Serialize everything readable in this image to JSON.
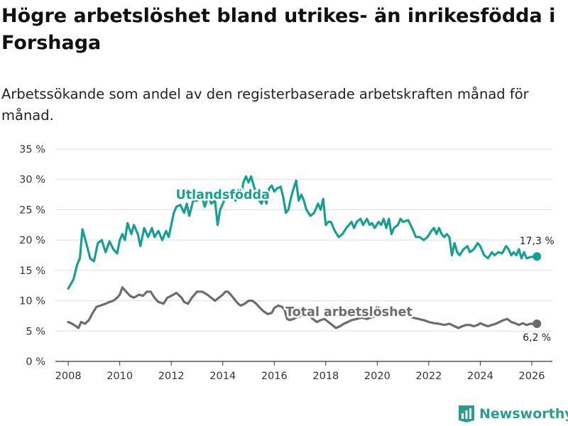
{
  "title": "Högre arbetslöshet bland utrikes- än inrikesfödda i Forshaga",
  "subtitle": "Arbetssökande som andel av den registerbaserade arbetskraften månad för månad.",
  "brand": {
    "name": "Newsworthy"
  },
  "colors": {
    "foreign": "#17a091",
    "total": "#6c6c70",
    "grid": "#dddddd",
    "axis": "#333333",
    "brand": "#2a9d8f"
  },
  "chart_data": {
    "type": "line",
    "title": "Högre arbetslöshet bland utrikes- än inrikesfödda i Forshaga",
    "xlabel": "",
    "ylabel": "",
    "xlim": [
      2007.5,
      2026.8
    ],
    "ylim": [
      0,
      35
    ],
    "y_ticks": [
      0,
      5,
      10,
      15,
      20,
      25,
      30,
      35
    ],
    "y_tick_labels": [
      "0 %",
      "5 %",
      "10 %",
      "15 %",
      "20 %",
      "25 %",
      "30 %",
      "35 %"
    ],
    "x_ticks": [
      2008,
      2010,
      2012,
      2014,
      2016,
      2018,
      2020,
      2022,
      2024,
      2026
    ],
    "x_tick_labels": [
      "2008",
      "2010",
      "2012",
      "2014",
      "2016",
      "2018",
      "2020",
      "2022",
      "2024",
      "2026"
    ],
    "grid": true,
    "series": [
      {
        "name": "Utlandsfödda",
        "key": "foreign",
        "end_label": "17,3 %",
        "points": [
          [
            2008.0,
            12.0
          ],
          [
            2008.2,
            13.5
          ],
          [
            2008.35,
            16.0
          ],
          [
            2008.45,
            17.0
          ],
          [
            2008.55,
            21.8
          ],
          [
            2008.7,
            19.5
          ],
          [
            2008.85,
            17.0
          ],
          [
            2009.0,
            16.5
          ],
          [
            2009.15,
            19.5
          ],
          [
            2009.3,
            20.0
          ],
          [
            2009.45,
            18.0
          ],
          [
            2009.6,
            19.8
          ],
          [
            2009.75,
            18.5
          ],
          [
            2009.9,
            17.8
          ],
          [
            2010.0,
            20.0
          ],
          [
            2010.1,
            21.0
          ],
          [
            2010.2,
            20.0
          ],
          [
            2010.3,
            22.8
          ],
          [
            2010.45,
            21.0
          ],
          [
            2010.55,
            22.5
          ],
          [
            2010.7,
            21.0
          ],
          [
            2010.8,
            19.0
          ],
          [
            2010.95,
            22.0
          ],
          [
            2011.1,
            20.5
          ],
          [
            2011.25,
            22.0
          ],
          [
            2011.35,
            20.5
          ],
          [
            2011.5,
            21.5
          ],
          [
            2011.65,
            20.0
          ],
          [
            2011.8,
            21.5
          ],
          [
            2011.9,
            20.5
          ],
          [
            2012.0,
            22.5
          ],
          [
            2012.1,
            24.5
          ],
          [
            2012.2,
            25.5
          ],
          [
            2012.35,
            25.8
          ],
          [
            2012.5,
            24.5
          ],
          [
            2012.6,
            26.0
          ],
          [
            2012.7,
            24.0
          ],
          [
            2012.85,
            26.5
          ],
          [
            2013.0,
            26.5
          ],
          [
            2013.2,
            27.0
          ],
          [
            2013.3,
            25.5
          ],
          [
            2013.45,
            27.5
          ],
          [
            2013.55,
            26.0
          ],
          [
            2013.7,
            26.5
          ],
          [
            2013.8,
            22.5
          ],
          [
            2013.9,
            25.0
          ],
          [
            2014.05,
            26.5
          ],
          [
            2014.2,
            27.0
          ],
          [
            2014.35,
            27.5
          ],
          [
            2014.5,
            26.5
          ],
          [
            2014.6,
            28.5
          ],
          [
            2014.7,
            27.0
          ],
          [
            2014.8,
            29.5
          ],
          [
            2014.9,
            30.5
          ],
          [
            2015.0,
            29.5
          ],
          [
            2015.1,
            30.5
          ],
          [
            2015.2,
            29.0
          ],
          [
            2015.35,
            27.0
          ],
          [
            2015.5,
            26.0
          ],
          [
            2015.6,
            27.0
          ],
          [
            2015.7,
            26.0
          ],
          [
            2015.8,
            28.5
          ],
          [
            2015.9,
            29.0
          ],
          [
            2016.0,
            28.0
          ],
          [
            2016.1,
            28.5
          ],
          [
            2016.25,
            28.8
          ],
          [
            2016.35,
            27.0
          ],
          [
            2016.45,
            24.5
          ],
          [
            2016.55,
            25.0
          ],
          [
            2016.65,
            27.0
          ],
          [
            2016.75,
            28.5
          ],
          [
            2016.85,
            29.8
          ],
          [
            2016.95,
            26.5
          ],
          [
            2017.05,
            27.5
          ],
          [
            2017.15,
            26.5
          ],
          [
            2017.25,
            25.0
          ],
          [
            2017.4,
            24.0
          ],
          [
            2017.55,
            24.5
          ],
          [
            2017.7,
            26.0
          ],
          [
            2017.8,
            25.0
          ],
          [
            2017.9,
            26.8
          ],
          [
            2018.0,
            22.5
          ],
          [
            2018.1,
            23.0
          ],
          [
            2018.2,
            23.0
          ],
          [
            2018.35,
            21.5
          ],
          [
            2018.5,
            20.5
          ],
          [
            2018.65,
            21.0
          ],
          [
            2018.8,
            22.0
          ],
          [
            2018.9,
            22.5
          ],
          [
            2019.0,
            23.0
          ],
          [
            2019.1,
            22.0
          ],
          [
            2019.2,
            23.0
          ],
          [
            2019.35,
            23.5
          ],
          [
            2019.45,
            22.5
          ],
          [
            2019.6,
            23.5
          ],
          [
            2019.7,
            22.5
          ],
          [
            2019.8,
            22.8
          ],
          [
            2019.9,
            22.0
          ],
          [
            2020.05,
            23.0
          ],
          [
            2020.15,
            22.5
          ],
          [
            2020.25,
            23.5
          ],
          [
            2020.35,
            22.0
          ],
          [
            2020.45,
            23.5
          ],
          [
            2020.55,
            21.0
          ],
          [
            2020.65,
            22.0
          ],
          [
            2020.8,
            22.5
          ],
          [
            2020.9,
            23.5
          ],
          [
            2021.0,
            23.0
          ],
          [
            2021.2,
            23.3
          ],
          [
            2021.35,
            22.0
          ],
          [
            2021.5,
            20.5
          ],
          [
            2021.65,
            20.5
          ],
          [
            2021.8,
            20.0
          ],
          [
            2021.95,
            20.5
          ],
          [
            2022.1,
            21.5
          ],
          [
            2022.2,
            22.0
          ],
          [
            2022.3,
            21.0
          ],
          [
            2022.4,
            22.0
          ],
          [
            2022.5,
            21.0
          ],
          [
            2022.6,
            20.5
          ],
          [
            2022.7,
            21.0
          ],
          [
            2022.8,
            20.5
          ],
          [
            2022.9,
            17.5
          ],
          [
            2023.0,
            19.5
          ],
          [
            2023.1,
            18.0
          ],
          [
            2023.2,
            17.5
          ],
          [
            2023.35,
            18.5
          ],
          [
            2023.5,
            19.0
          ],
          [
            2023.6,
            18.0
          ],
          [
            2023.75,
            18.5
          ],
          [
            2023.9,
            19.5
          ],
          [
            2024.0,
            19.0
          ],
          [
            2024.15,
            17.5
          ],
          [
            2024.3,
            17.0
          ],
          [
            2024.45,
            18.0
          ],
          [
            2024.55,
            17.5
          ],
          [
            2024.7,
            18.0
          ],
          [
            2024.85,
            17.8
          ],
          [
            2025.0,
            19.0
          ],
          [
            2025.1,
            18.5
          ],
          [
            2025.2,
            17.5
          ],
          [
            2025.3,
            18.0
          ],
          [
            2025.4,
            17.5
          ],
          [
            2025.5,
            18.5
          ],
          [
            2025.6,
            17.0
          ],
          [
            2025.7,
            18.0
          ],
          [
            2025.8,
            17.0
          ],
          [
            2025.95,
            17.2
          ],
          [
            2026.1,
            17.3
          ],
          [
            2026.2,
            17.3
          ]
        ]
      },
      {
        "name": "Total arbetslöshet",
        "key": "total",
        "end_label": "6,2 %",
        "points": [
          [
            2008.0,
            6.5
          ],
          [
            2008.15,
            6.2
          ],
          [
            2008.3,
            5.8
          ],
          [
            2008.4,
            5.5
          ],
          [
            2008.5,
            6.5
          ],
          [
            2008.65,
            6.2
          ],
          [
            2008.8,
            6.8
          ],
          [
            2008.95,
            8.0
          ],
          [
            2009.1,
            9.0
          ],
          [
            2009.25,
            9.2
          ],
          [
            2009.45,
            9.5
          ],
          [
            2009.6,
            9.8
          ],
          [
            2009.75,
            10.0
          ],
          [
            2009.9,
            10.5
          ],
          [
            2010.0,
            11.0
          ],
          [
            2010.1,
            12.2
          ],
          [
            2010.25,
            11.5
          ],
          [
            2010.4,
            10.8
          ],
          [
            2010.55,
            10.5
          ],
          [
            2010.75,
            11.0
          ],
          [
            2010.9,
            10.8
          ],
          [
            2011.05,
            11.5
          ],
          [
            2011.2,
            11.5
          ],
          [
            2011.35,
            10.5
          ],
          [
            2011.5,
            9.8
          ],
          [
            2011.7,
            9.5
          ],
          [
            2011.85,
            10.5
          ],
          [
            2012.0,
            10.8
          ],
          [
            2012.2,
            11.3
          ],
          [
            2012.4,
            10.5
          ],
          [
            2012.5,
            9.8
          ],
          [
            2012.65,
            9.5
          ],
          [
            2012.8,
            10.5
          ],
          [
            2013.0,
            11.5
          ],
          [
            2013.2,
            11.5
          ],
          [
            2013.4,
            11.0
          ],
          [
            2013.55,
            10.5
          ],
          [
            2013.7,
            10.0
          ],
          [
            2013.85,
            10.5
          ],
          [
            2014.0,
            11.0
          ],
          [
            2014.1,
            11.5
          ],
          [
            2014.2,
            11.5
          ],
          [
            2014.35,
            10.8
          ],
          [
            2014.5,
            10.0
          ],
          [
            2014.6,
            9.5
          ],
          [
            2014.7,
            9.2
          ],
          [
            2014.85,
            9.5
          ],
          [
            2015.0,
            10.0
          ],
          [
            2015.15,
            10.0
          ],
          [
            2015.3,
            9.5
          ],
          [
            2015.45,
            8.8
          ],
          [
            2015.6,
            8.2
          ],
          [
            2015.75,
            7.8
          ],
          [
            2015.9,
            8.0
          ],
          [
            2016.0,
            8.8
          ],
          [
            2016.15,
            9.2
          ],
          [
            2016.3,
            9.0
          ],
          [
            2016.4,
            8.5
          ],
          [
            2016.5,
            7.0
          ],
          [
            2016.6,
            6.8
          ],
          [
            2016.75,
            7.0
          ],
          [
            2016.9,
            7.3
          ],
          [
            2017.05,
            7.5
          ],
          [
            2017.2,
            7.8
          ],
          [
            2017.35,
            7.5
          ],
          [
            2017.5,
            7.0
          ],
          [
            2017.65,
            6.5
          ],
          [
            2017.8,
            6.8
          ],
          [
            2017.95,
            7.0
          ],
          [
            2018.1,
            6.5
          ],
          [
            2018.25,
            6.0
          ],
          [
            2018.4,
            5.5
          ],
          [
            2018.55,
            5.8
          ],
          [
            2018.7,
            6.2
          ],
          [
            2018.85,
            6.5
          ],
          [
            2019.0,
            6.8
          ],
          [
            2019.2,
            7.0
          ],
          [
            2019.4,
            7.2
          ],
          [
            2019.6,
            7.0
          ],
          [
            2019.8,
            7.3
          ],
          [
            2020.0,
            7.5
          ],
          [
            2020.2,
            8.0
          ],
          [
            2020.4,
            8.5
          ],
          [
            2020.6,
            8.3
          ],
          [
            2020.8,
            8.0
          ],
          [
            2021.0,
            7.8
          ],
          [
            2021.2,
            7.5
          ],
          [
            2021.4,
            7.2
          ],
          [
            2021.6,
            7.0
          ],
          [
            2021.8,
            6.8
          ],
          [
            2022.0,
            6.5
          ],
          [
            2022.2,
            6.3
          ],
          [
            2022.4,
            6.2
          ],
          [
            2022.6,
            6.0
          ],
          [
            2022.8,
            6.2
          ],
          [
            2023.0,
            5.8
          ],
          [
            2023.15,
            5.5
          ],
          [
            2023.3,
            5.8
          ],
          [
            2023.45,
            6.0
          ],
          [
            2023.6,
            6.0
          ],
          [
            2023.75,
            5.8
          ],
          [
            2023.9,
            6.0
          ],
          [
            2024.0,
            6.3
          ],
          [
            2024.15,
            6.0
          ],
          [
            2024.3,
            5.8
          ],
          [
            2024.45,
            6.0
          ],
          [
            2024.6,
            6.2
          ],
          [
            2024.75,
            6.5
          ],
          [
            2024.9,
            6.8
          ],
          [
            2025.05,
            7.0
          ],
          [
            2025.2,
            6.5
          ],
          [
            2025.35,
            6.3
          ],
          [
            2025.5,
            6.0
          ],
          [
            2025.65,
            6.3
          ],
          [
            2025.8,
            6.0
          ],
          [
            2025.95,
            6.2
          ],
          [
            2026.1,
            6.2
          ],
          [
            2026.2,
            6.2
          ]
        ]
      }
    ],
    "annotations": [
      {
        "series": "foreign",
        "text": "Utlandsfödda",
        "x": 2014.0,
        "y": 26.8
      },
      {
        "series": "total",
        "text": "Total arbetslöshet",
        "x": 2018.9,
        "y": 7.5
      }
    ]
  }
}
